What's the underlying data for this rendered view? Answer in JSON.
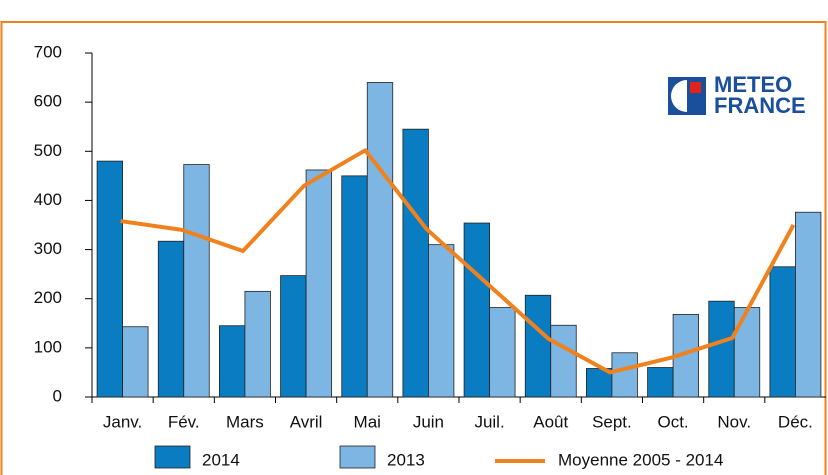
{
  "chart_data": {
    "type": "bar",
    "logo": [
      "METEO",
      "FRANCE"
    ],
    "categories": [
      "Janv.",
      "Fév.",
      "Mars",
      "Avril",
      "Mai",
      "Juin",
      "Juil.",
      "Août",
      "Sept.",
      "Oct.",
      "Nov.",
      "Déc."
    ],
    "series": [
      {
        "name": "2014",
        "type": "bar",
        "color": "#0a7cc1",
        "values": [
          480,
          317,
          145,
          247,
          450,
          545,
          354,
          207,
          58,
          60,
          195,
          265
        ]
      },
      {
        "name": "2013",
        "type": "bar",
        "color": "#7db5e3",
        "values": [
          143,
          473,
          215,
          462,
          640,
          310,
          182,
          146,
          90,
          168,
          182,
          376
        ]
      },
      {
        "name": "Moyenne 2005 - 2014",
        "type": "line",
        "color": "#f0821e",
        "values": [
          358,
          340,
          297,
          430,
          502,
          342,
          230,
          118,
          50,
          80,
          120,
          350
        ]
      }
    ],
    "ylim": [
      0,
      700
    ],
    "yticks": [
      0,
      100,
      200,
      300,
      400,
      500,
      600,
      700
    ],
    "grid": false
  }
}
